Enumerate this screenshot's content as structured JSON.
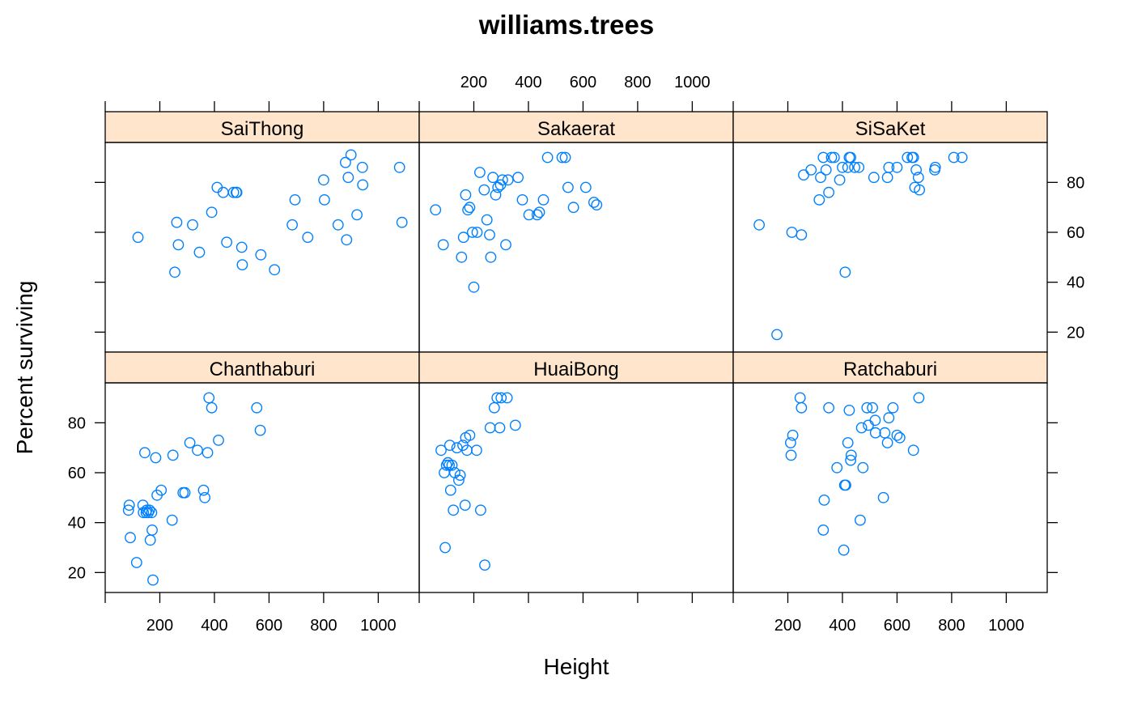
{
  "chart_data": {
    "type": "scatter",
    "title": "williams.trees",
    "xlabel": "Height",
    "ylabel": "Percent surviving",
    "layout": "3 columns x 2 rows trellis",
    "xlim": [
      0,
      1150
    ],
    "ylim": [
      12,
      96
    ],
    "x_ticks": [
      200,
      400,
      600,
      800,
      1000
    ],
    "y_ticks": [
      20,
      40,
      60,
      80
    ],
    "colors": {
      "point": "#0080ff",
      "strip": "#ffe5cc",
      "frame": "#000000"
    },
    "panels": [
      {
        "name": "SaiThong",
        "x": [
          120,
          255,
          262,
          268,
          320,
          345,
          390,
          410,
          432,
          445,
          470,
          480,
          482,
          500,
          502,
          570,
          620,
          685,
          695,
          742,
          800,
          803,
          853,
          880,
          884,
          890,
          900,
          922,
          942,
          943,
          1078,
          1087
        ],
        "y": [
          58,
          44,
          64,
          55,
          63,
          52,
          68,
          78,
          76,
          56,
          76,
          76,
          76,
          54,
          47,
          51,
          45,
          63,
          73,
          58,
          81,
          73,
          63,
          88,
          57,
          82,
          91,
          67,
          86,
          79,
          86,
          64
        ]
      },
      {
        "name": "Sakaerat",
        "x": [
          60,
          88,
          155,
          162,
          170,
          178,
          185,
          195,
          200,
          212,
          222,
          238,
          248,
          258,
          262,
          270,
          280,
          288,
          298,
          305,
          317,
          325,
          362,
          378,
          402,
          432,
          440,
          455,
          470,
          523,
          535,
          545,
          565,
          610,
          640,
          650
        ],
        "y": [
          69,
          55,
          50,
          58,
          75,
          69,
          70,
          60,
          38,
          60,
          84,
          77,
          65,
          59,
          50,
          82,
          75,
          78,
          79,
          81,
          55,
          81,
          82,
          73,
          67,
          67,
          68,
          73,
          90,
          90,
          90,
          78,
          70,
          78,
          72,
          71
        ]
      },
      {
        "name": "SiSaKet",
        "x": [
          95,
          160,
          215,
          250,
          258,
          285,
          315,
          320,
          330,
          340,
          350,
          360,
          370,
          390,
          400,
          410,
          420,
          425,
          430,
          445,
          460,
          515,
          565,
          570,
          600,
          638,
          655,
          660,
          665,
          670,
          678,
          682,
          738,
          740,
          808,
          838
        ],
        "y": [
          63,
          19,
          60,
          59,
          83,
          85,
          73,
          82,
          90,
          85,
          76,
          90,
          90,
          81,
          86,
          44,
          86,
          90,
          90,
          86,
          86,
          82,
          82,
          86,
          86,
          90,
          90,
          90,
          78,
          85,
          82,
          77,
          85,
          86,
          90,
          90
        ]
      },
      {
        "name": "Chanthaburi",
        "x": [
          85,
          88,
          92,
          115,
          138,
          140,
          145,
          150,
          152,
          158,
          162,
          165,
          170,
          172,
          175,
          185,
          190,
          205,
          245,
          248,
          285,
          292,
          310,
          338,
          360,
          365,
          375,
          380,
          390,
          415,
          555,
          568
        ],
        "y": [
          45,
          47,
          34,
          24,
          47,
          44,
          68,
          44,
          45,
          44,
          45,
          33,
          44,
          37,
          17,
          66,
          51,
          53,
          41,
          67,
          52,
          52,
          72,
          69,
          53,
          50,
          68,
          90,
          86,
          73,
          86,
          77
        ]
      },
      {
        "name": "HuaiBong",
        "x": [
          80,
          92,
          95,
          100,
          105,
          110,
          112,
          115,
          120,
          125,
          130,
          138,
          145,
          150,
          160,
          168,
          170,
          175,
          185,
          210,
          225,
          240,
          260,
          275,
          285,
          295,
          300,
          322,
          352
        ],
        "y": [
          69,
          60,
          30,
          63,
          64,
          63,
          71,
          53,
          63,
          45,
          60,
          70,
          57,
          59,
          71,
          47,
          74,
          69,
          75,
          69,
          45,
          23,
          78,
          86,
          90,
          78,
          90,
          90,
          79
        ]
      },
      {
        "name": "Ratchaburi",
        "x": [
          210,
          212,
          218,
          245,
          250,
          330,
          333,
          350,
          380,
          405,
          408,
          412,
          420,
          425,
          430,
          432,
          465,
          470,
          475,
          490,
          495,
          510,
          520,
          521,
          550,
          555,
          565,
          570,
          585,
          600,
          610,
          660,
          680
        ],
        "y": [
          72,
          67,
          75,
          90,
          86,
          37,
          49,
          86,
          62,
          29,
          55,
          55,
          72,
          85,
          65,
          67,
          41,
          78,
          62,
          86,
          79,
          86,
          81,
          76,
          50,
          76,
          72,
          82,
          86,
          75,
          74,
          69,
          90
        ]
      }
    ]
  }
}
